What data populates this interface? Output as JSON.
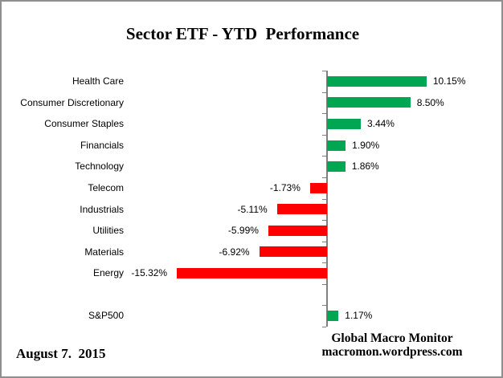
{
  "title": "Sector ETF - YTD  Performance",
  "footer": {
    "date": "August 7.  2015",
    "brand_line1": "Global Macro Monitor",
    "brand_line2": "macromon.wordpress.com"
  },
  "chart_data": {
    "type": "bar",
    "orientation": "horizontal",
    "title": "Sector ETF - YTD  Performance",
    "categories": [
      "Health Care",
      "Consumer Discretionary",
      "Consumer Staples",
      "Financials",
      "Technology",
      "Telecom",
      "Industrials",
      "Utilities",
      "Materials",
      "Energy",
      "",
      "S&P500"
    ],
    "values": [
      10.15,
      8.5,
      3.44,
      1.9,
      1.86,
      -1.73,
      -5.11,
      -5.99,
      -6.92,
      -15.32,
      null,
      1.17
    ],
    "value_labels": [
      "10.15%",
      "8.50%",
      "3.44%",
      "1.90%",
      "1.86%",
      "-1.73%",
      "-5.11%",
      "-5.99%",
      "-6.92%",
      "-15.32%",
      "",
      "1.17%"
    ],
    "xlabel": "",
    "ylabel": "",
    "grid": false,
    "legend": "none",
    "data_labels": "outside-end",
    "colors": {
      "positive_bar": "#00A651",
      "negative_bar": "#FF0000",
      "axis_line": "#808080",
      "text": "#000000",
      "border": "#8F8F8F"
    }
  }
}
